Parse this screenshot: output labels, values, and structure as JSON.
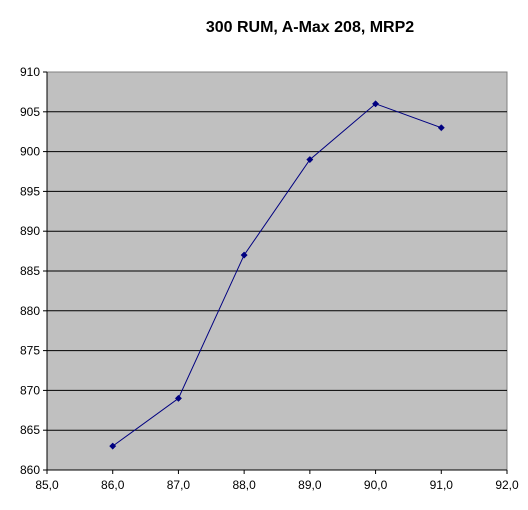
{
  "chart_data": {
    "type": "line",
    "title": "300 RUM, A-Max 208, MRP2",
    "xlabel": "",
    "ylabel": "",
    "x": [
      86.0,
      87.0,
      88.0,
      89.0,
      90.0,
      91.0
    ],
    "y": [
      863,
      869,
      887,
      899,
      906,
      903
    ],
    "xlim": [
      85.0,
      92.0
    ],
    "ylim": [
      860,
      910
    ],
    "x_ticks": [
      "85,0",
      "86,0",
      "87,0",
      "88,0",
      "89,0",
      "90,0",
      "91,0",
      "92,0"
    ],
    "y_ticks": [
      "860",
      "865",
      "870",
      "875",
      "880",
      "885",
      "890",
      "895",
      "900",
      "905",
      "910"
    ],
    "grid": "horizontal",
    "legend": "none",
    "colors": {
      "plot_background": "#c0c0c0",
      "series_line": "#000080",
      "gridline": "#000000"
    }
  }
}
